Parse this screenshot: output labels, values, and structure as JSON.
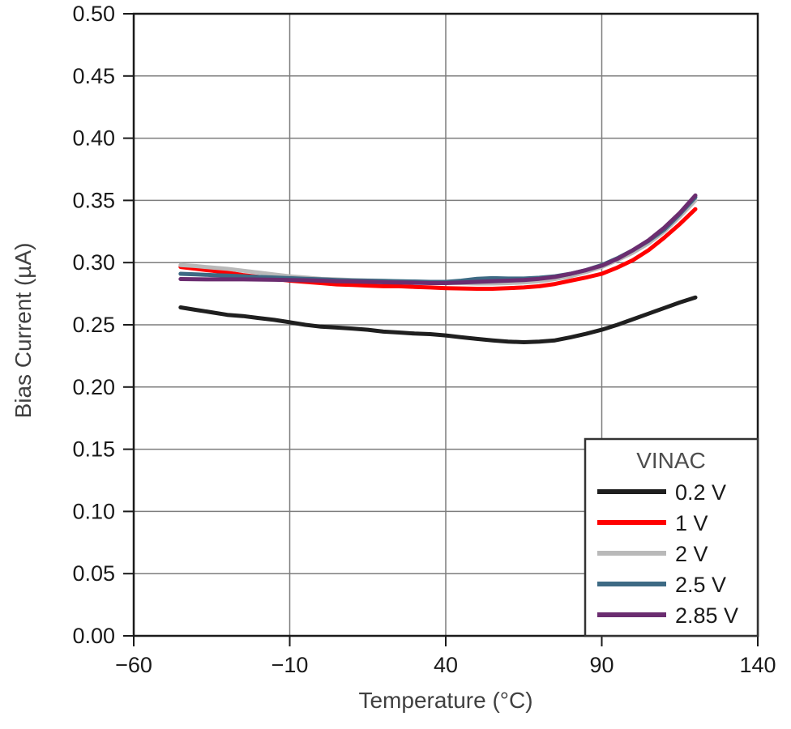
{
  "figure": {
    "x_axis_title": "Temperature (°C)",
    "y_axis_title": "Bias Current (µA)",
    "legend_title": "VINAC"
  },
  "colors": {
    "background": "#ffffff",
    "plot_border": "#1a1a1a",
    "gridline": "#7d7d7d",
    "tick_mark": "#1a1a1a",
    "tick_label": "#1a1a1a",
    "axis_title": "#404040",
    "legend_border": "#333333",
    "legend_title": "#4d4d4d",
    "legend_label": "#1a1a1a"
  },
  "chart_data": {
    "type": "line",
    "title": "",
    "xlabel": "Temperature (°C)",
    "ylabel": "Bias Current (µA)",
    "xlim": [
      -60,
      140
    ],
    "ylim": [
      0,
      0.5
    ],
    "grid": true,
    "legend": {
      "title": "VINAC",
      "position": "lower right"
    },
    "x_ticks": [
      -60,
      -10,
      40,
      90,
      140
    ],
    "x_tick_labels": [
      "−60",
      "−10",
      "40",
      "90",
      "140"
    ],
    "y_ticks": [
      0,
      0.05,
      0.1,
      0.15,
      0.2,
      0.25,
      0.3,
      0.35,
      0.4,
      0.45,
      0.5
    ],
    "y_tick_labels": [
      "0.00",
      "0.05",
      "0.10",
      "0.15",
      "0.20",
      "0.25",
      "0.30",
      "0.35",
      "0.40",
      "0.45",
      "0.50"
    ],
    "x": [
      -45,
      -40,
      -35,
      -30,
      -25,
      -20,
      -15,
      -10,
      -5,
      0,
      5,
      10,
      15,
      20,
      25,
      30,
      35,
      40,
      45,
      50,
      55,
      60,
      65,
      70,
      75,
      80,
      85,
      90,
      95,
      100,
      105,
      110,
      115,
      120
    ],
    "series": [
      {
        "name": "0.2 V",
        "color": "#1f1f1f",
        "values": [
          0.264,
          0.262,
          0.26,
          0.258,
          0.257,
          0.2555,
          0.254,
          0.252,
          0.25,
          0.2485,
          0.2478,
          0.247,
          0.246,
          0.2445,
          0.2438,
          0.243,
          0.2425,
          0.2415,
          0.24,
          0.2387,
          0.2375,
          0.2365,
          0.236,
          0.2365,
          0.2375,
          0.24,
          0.2428,
          0.246,
          0.25,
          0.2545,
          0.259,
          0.2635,
          0.268,
          0.272
        ]
      },
      {
        "name": "1 V",
        "color": "#ff0000",
        "values": [
          0.2965,
          0.295,
          0.2935,
          0.292,
          0.29,
          0.2885,
          0.287,
          0.2855,
          0.2845,
          0.2835,
          0.2825,
          0.282,
          0.2815,
          0.281,
          0.281,
          0.2805,
          0.28,
          0.2795,
          0.2792,
          0.279,
          0.279,
          0.2795,
          0.28,
          0.281,
          0.2828,
          0.2855,
          0.288,
          0.291,
          0.296,
          0.302,
          0.31,
          0.32,
          0.331,
          0.343
        ]
      },
      {
        "name": "2 V",
        "color": "#b9b9b9",
        "values": [
          0.298,
          0.2972,
          0.296,
          0.295,
          0.2935,
          0.292,
          0.2905,
          0.289,
          0.288,
          0.287,
          0.2865,
          0.286,
          0.2857,
          0.2855,
          0.285,
          0.2847,
          0.2843,
          0.2838,
          0.2835,
          0.2832,
          0.2832,
          0.2835,
          0.284,
          0.285,
          0.2868,
          0.289,
          0.2925,
          0.2965,
          0.302,
          0.308,
          0.3155,
          0.325,
          0.337,
          0.35
        ]
      },
      {
        "name": "2.5 V",
        "color": "#3d6a84",
        "values": [
          0.291,
          0.2905,
          0.29,
          0.2895,
          0.289,
          0.2885,
          0.288,
          0.2875,
          0.287,
          0.2865,
          0.286,
          0.2857,
          0.2855,
          0.2852,
          0.285,
          0.2848,
          0.2845,
          0.2845,
          0.2855,
          0.287,
          0.2875,
          0.2872,
          0.2872,
          0.2878,
          0.289,
          0.291,
          0.294,
          0.298,
          0.3035,
          0.31,
          0.3175,
          0.3265,
          0.339,
          0.3525
        ]
      },
      {
        "name": "2.85 V",
        "color": "#6b2d70",
        "values": [
          0.2868,
          0.2866,
          0.2865,
          0.2865,
          0.2865,
          0.2864,
          0.2862,
          0.286,
          0.2858,
          0.2855,
          0.285,
          0.2848,
          0.2845,
          0.2842,
          0.284,
          0.2838,
          0.2835,
          0.2835,
          0.284,
          0.2845,
          0.285,
          0.2855,
          0.286,
          0.287,
          0.2885,
          0.291,
          0.294,
          0.2975,
          0.303,
          0.31,
          0.318,
          0.328,
          0.34,
          0.354
        ]
      }
    ]
  }
}
